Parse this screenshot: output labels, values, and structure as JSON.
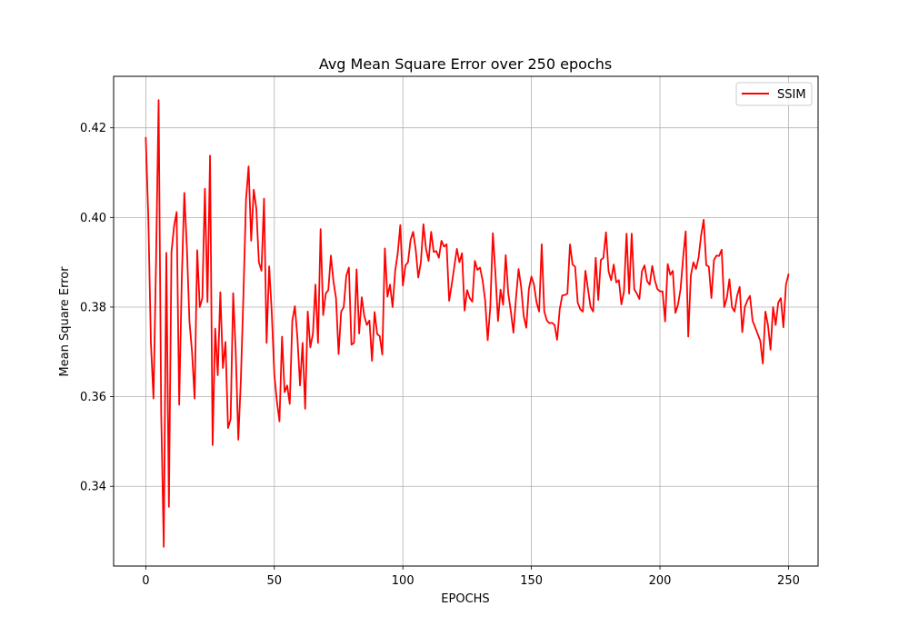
{
  "chart_data": {
    "type": "line",
    "title": "Avg Mean Square Error over 250 epochs",
    "xlabel": "EPOCHS",
    "ylabel": "Mean Square Error",
    "xlim": [
      -12.5,
      261.5
    ],
    "ylim": [
      0.3222,
      0.4315
    ],
    "xticks": [
      0,
      50,
      100,
      150,
      200,
      250
    ],
    "yticks": [
      0.34,
      0.36,
      0.38,
      0.4,
      0.42
    ],
    "xtick_labels": [
      "0",
      "50",
      "100",
      "150",
      "200",
      "250"
    ],
    "ytick_labels": [
      "0.34",
      "0.36",
      "0.38",
      "0.40",
      "0.42"
    ],
    "grid": true,
    "legend_position": "top-right",
    "series": [
      {
        "name": "SSIM",
        "color": "#ff0000",
        "x_start": 0,
        "x_step": 1,
        "values": [
          0.4178,
          0.4,
          0.372,
          0.3596,
          0.39,
          0.4262,
          0.3563,
          0.3265,
          0.3921,
          0.3354,
          0.3923,
          0.398,
          0.4012,
          0.3582,
          0.386,
          0.4055,
          0.3932,
          0.3767,
          0.37,
          0.3596,
          0.3927,
          0.38,
          0.382,
          0.4064,
          0.3811,
          0.4138,
          0.3492,
          0.3752,
          0.3648,
          0.3833,
          0.3664,
          0.3722,
          0.353,
          0.355,
          0.3831,
          0.37,
          0.3504,
          0.364,
          0.383,
          0.404,
          0.4114,
          0.3948,
          0.4062,
          0.402,
          0.39,
          0.3881,
          0.4042,
          0.372,
          0.3891,
          0.3788,
          0.365,
          0.359,
          0.3545,
          0.3734,
          0.361,
          0.3625,
          0.3584,
          0.377,
          0.3802,
          0.373,
          0.3625,
          0.372,
          0.3573,
          0.379,
          0.371,
          0.374,
          0.385,
          0.372,
          0.3974,
          0.3782,
          0.383,
          0.3838,
          0.3915,
          0.3858,
          0.382,
          0.3695,
          0.379,
          0.38,
          0.387,
          0.3888,
          0.3716,
          0.372,
          0.3884,
          0.3741,
          0.3822,
          0.378,
          0.376,
          0.377,
          0.368,
          0.3789,
          0.374,
          0.3735,
          0.3694,
          0.3931,
          0.3823,
          0.385,
          0.38,
          0.388,
          0.392,
          0.3983,
          0.3848,
          0.3893,
          0.39,
          0.395,
          0.3968,
          0.3928,
          0.3866,
          0.39,
          0.3985,
          0.393,
          0.3903,
          0.3968,
          0.3923,
          0.3925,
          0.391,
          0.3948,
          0.3935,
          0.394,
          0.3814,
          0.385,
          0.389,
          0.393,
          0.39,
          0.392,
          0.3792,
          0.3838,
          0.382,
          0.3812,
          0.3903,
          0.3883,
          0.3888,
          0.386,
          0.3815,
          0.3726,
          0.38,
          0.3965,
          0.3875,
          0.3769,
          0.3839,
          0.3805,
          0.3916,
          0.383,
          0.379,
          0.3743,
          0.382,
          0.3885,
          0.3845,
          0.378,
          0.3754,
          0.384,
          0.3868,
          0.385,
          0.381,
          0.379,
          0.394,
          0.379,
          0.377,
          0.3764,
          0.3765,
          0.376,
          0.3727,
          0.3795,
          0.3826,
          0.3827,
          0.383,
          0.394,
          0.3895,
          0.389,
          0.381,
          0.3795,
          0.379,
          0.3881,
          0.384,
          0.38,
          0.379,
          0.391,
          0.3816,
          0.3905,
          0.391,
          0.3967,
          0.388,
          0.386,
          0.3895,
          0.3855,
          0.386,
          0.3806,
          0.3835,
          0.3964,
          0.383,
          0.3964,
          0.384,
          0.383,
          0.3818,
          0.388,
          0.3893,
          0.3858,
          0.385,
          0.3892,
          0.386,
          0.384,
          0.3835,
          0.3835,
          0.3768,
          0.3896,
          0.3872,
          0.3881,
          0.3787,
          0.3805,
          0.384,
          0.391,
          0.3969,
          0.3734,
          0.387,
          0.39,
          0.3885,
          0.391,
          0.396,
          0.3995,
          0.3894,
          0.389,
          0.382,
          0.3905,
          0.3915,
          0.3914,
          0.3928,
          0.38,
          0.382,
          0.3862,
          0.38,
          0.379,
          0.3825,
          0.3845,
          0.3744,
          0.38,
          0.3815,
          0.3825,
          0.377,
          0.3755,
          0.374,
          0.3725,
          0.3674,
          0.379,
          0.376,
          0.3705,
          0.38,
          0.376,
          0.381,
          0.382,
          0.3755,
          0.385,
          0.3873
        ]
      }
    ]
  }
}
